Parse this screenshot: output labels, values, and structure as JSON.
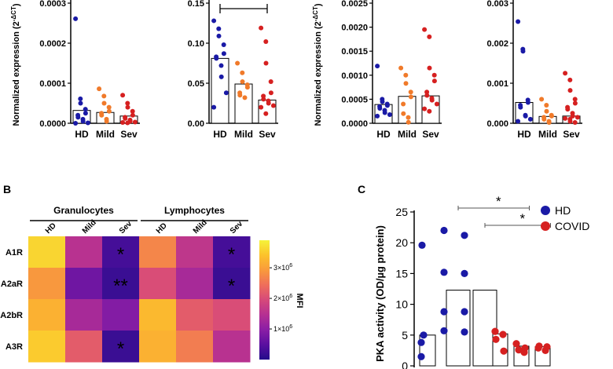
{
  "panel_labels": {
    "b": "B",
    "c": "C"
  },
  "chart_data": [
    {
      "type": "scatter",
      "id": "a1",
      "ylabel": "Normalized expression (2",
      "ylabel_sup": "-ΔCT",
      "ylabel_close": ")",
      "categories": [
        "HD",
        "Mild",
        "Sev"
      ],
      "ylim": [
        0,
        0.0003
      ],
      "yticks": [
        {
          "v": 0,
          "label": "0.0000"
        },
        {
          "v": 0.0001,
          "label": "0.0001"
        },
        {
          "v": 0.0002,
          "label": "0.0002"
        },
        {
          "v": 0.0003,
          "label": "0.0003"
        }
      ],
      "bar_values": [
        3.2e-05,
        2.7e-05,
        1.8e-05
      ],
      "points": [
        [
          0.000261,
          6.1e-05,
          5e-05,
          3.5e-05,
          2.5e-05,
          2e-05,
          1.5e-05,
          1e-05,
          5e-06,
          1e-06,
          0.0
        ],
        [
          8.6e-05,
          6.8e-05,
          5e-05,
          4e-05,
          3e-05,
          2.5e-05,
          2e-05,
          1e-05,
          5e-06
        ],
        [
          7e-05,
          5e-05,
          4e-05,
          3e-05,
          2e-05,
          1.5e-05,
          1.2e-05,
          8e-06,
          5e-06,
          3e-06,
          2e-06,
          1e-06
        ]
      ]
    },
    {
      "type": "scatter",
      "id": "a2",
      "ylabel": "",
      "ylabel_sup": "",
      "ylabel_close": "",
      "categories": [
        "HD",
        "Mild",
        "Sev"
      ],
      "ylim": [
        0,
        0.15
      ],
      "yticks": [
        {
          "v": 0,
          "label": "0.00"
        },
        {
          "v": 0.05,
          "label": "0.05"
        },
        {
          "v": 0.1,
          "label": "0.10"
        },
        {
          "v": 0.15,
          "label": "0.15"
        }
      ],
      "bar_values": [
        0.081,
        0.049,
        0.029
      ],
      "bracket": [
        0,
        2
      ],
      "points": [
        [
          0.128,
          0.118,
          0.109,
          0.098,
          0.087,
          0.083,
          0.081,
          0.072,
          0.058,
          0.038,
          0.02
        ],
        [
          0.075,
          0.063,
          0.052,
          0.048,
          0.045,
          0.038,
          0.035,
          0.032
        ],
        [
          0.119,
          0.102,
          0.075,
          0.052,
          0.038,
          0.034,
          0.03,
          0.028,
          0.025,
          0.022,
          0.02,
          0.012
        ]
      ]
    },
    {
      "type": "scatter",
      "id": "a3",
      "ylabel": "Normalized expression (2",
      "ylabel_sup": "-ΔCT",
      "ylabel_close": ")",
      "categories": [
        "HD",
        "Mild",
        "Sev"
      ],
      "ylim": [
        0,
        0.0025
      ],
      "yticks": [
        {
          "v": 0,
          "label": "0.0000"
        },
        {
          "v": 0.0005,
          "label": "0.0005"
        },
        {
          "v": 0.001,
          "label": "0.0010"
        },
        {
          "v": 0.0015,
          "label": "0.0015"
        },
        {
          "v": 0.002,
          "label": "0.0020"
        },
        {
          "v": 0.0025,
          "label": "0.0025"
        }
      ],
      "bar_values": [
        0.00039,
        0.00056,
        0.00057
      ],
      "points": [
        [
          0.00119,
          0.0005,
          0.00045,
          0.0004,
          0.00037,
          0.00035,
          0.00031,
          0.00027,
          0.00022,
          0.00018,
          0.00015
        ],
        [
          0.00115,
          0.001,
          0.00083,
          0.00065,
          0.00055,
          0.0004,
          0.0002,
          0.00012,
          2e-05
        ],
        [
          0.00195,
          0.0018,
          0.00115,
          0.001,
          0.00088,
          0.00065,
          0.00058,
          0.00052,
          0.00048,
          0.0004,
          0.0003,
          0.00025
        ]
      ]
    },
    {
      "type": "scatter",
      "id": "a4",
      "ylabel": "",
      "ylabel_sup": "",
      "ylabel_close": "",
      "categories": [
        "HD",
        "Mild",
        "Sev"
      ],
      "ylim": [
        0,
        0.003
      ],
      "yticks": [
        {
          "v": 0,
          "label": "0.000"
        },
        {
          "v": 0.001,
          "label": "0.001"
        },
        {
          "v": 0.002,
          "label": "0.002"
        },
        {
          "v": 0.003,
          "label": "0.003"
        }
      ],
      "bar_values": [
        0.00052,
        0.00017,
        0.00018
      ],
      "points": [
        [
          0.00254,
          0.00185,
          0.0018,
          0.00058,
          0.00052,
          0.00045,
          0.0004,
          0.0002,
          0.00018,
          0.0001,
          5e-05
        ],
        [
          0.0006,
          0.00045,
          0.0003,
          0.0002,
          0.00018,
          0.00015,
          0.0001,
          5e-05,
          2e-05
        ],
        [
          0.00125,
          0.00108,
          0.00082,
          0.0006,
          0.0005,
          0.0004,
          0.00035,
          0.00025,
          0.00018,
          0.00015,
          0.00012,
          0.0001,
          5e-05,
          2e-05
        ]
      ]
    },
    {
      "type": "heatmap",
      "id": "b",
      "groups": [
        "Granulocytes",
        "Lymphocytes"
      ],
      "columns": [
        "HD",
        "Mild",
        "Sev",
        "HD",
        "Mild",
        "Sev"
      ],
      "rows": [
        "A1R",
        "A2aR",
        "A2bR",
        "A3R"
      ],
      "values": [
        [
          3600000,
          1500000,
          300000,
          2700000,
          1600000,
          300000
        ],
        [
          2900000,
          700000,
          200000,
          2000000,
          1300000,
          200000
        ],
        [
          3200000,
          1300000,
          900000,
          3300000,
          2200000,
          2000000
        ],
        [
          3500000,
          2200000,
          200000,
          3200000,
          2600000,
          1500000
        ]
      ],
      "annotations": [
        [
          "",
          "",
          "*",
          "",
          "",
          "*"
        ],
        [
          "",
          "",
          "**",
          "",
          "",
          "*"
        ],
        [
          "",
          "",
          "",
          "",
          "",
          ""
        ],
        [
          "",
          "",
          "*",
          "",
          "",
          ""
        ]
      ],
      "colorbar": {
        "label": "MFI",
        "range": [
          0,
          3900000
        ],
        "ticks": [
          {
            "v": 1000000,
            "base": "1×10",
            "exp": "6"
          },
          {
            "v": 2000000,
            "base": "2×10",
            "exp": "6"
          },
          {
            "v": 3000000,
            "base": "3×10",
            "exp": "6"
          }
        ],
        "colors": [
          "#230d8a",
          "#5a0fa0",
          "#8a1ea5",
          "#b53092",
          "#d6497a",
          "#ef6e5b",
          "#f99a3c",
          "#fcc22b",
          "#f5f33a"
        ]
      }
    },
    {
      "type": "bar",
      "id": "c",
      "ylabel": "PKA activity (OD/µg protein)",
      "ylim": [
        0,
        25
      ],
      "yticks": [
        {
          "v": 0,
          "label": "0"
        },
        {
          "v": 5,
          "label": "5"
        },
        {
          "v": 10,
          "label": "10"
        },
        {
          "v": 15,
          "label": "15"
        },
        {
          "v": 20,
          "label": "20"
        },
        {
          "v": 25,
          "label": "25"
        }
      ],
      "legend": [
        {
          "name": "HD",
          "color": "#1a1aa6"
        },
        {
          "name": "COVID",
          "color": "#d62020"
        }
      ],
      "bars": [
        {
          "value": 5.0,
          "group": 0,
          "points": [
            19.6,
            5.0,
            3.8,
            1.5
          ]
        },
        {
          "value": 12.3,
          "group": 0,
          "points": [
            22.0,
            15.2,
            8.8,
            5.7
          ]
        },
        {
          "value": 12.3,
          "group": 0,
          "points": [
            21.2,
            15.0,
            8.8,
            5.5
          ]
        },
        {
          "value": 5.2,
          "group": 1,
          "points": [
            5.6,
            5.1,
            4.3,
            2.4
          ]
        },
        {
          "value": 3.2,
          "group": 1,
          "points": [
            3.6,
            2.9,
            2.6,
            2.2
          ]
        },
        {
          "value": 3.1,
          "group": 1,
          "points": [
            3.2,
            3.1,
            2.9,
            2.5
          ]
        }
      ],
      "significance": [
        {
          "from": 1,
          "to": 4,
          "label": "*"
        },
        {
          "from": 2,
          "to": 5,
          "label": "*"
        }
      ]
    }
  ]
}
